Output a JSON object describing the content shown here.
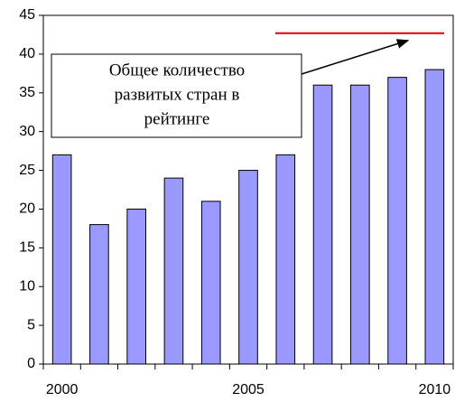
{
  "chart_data": {
    "type": "bar",
    "categories": [
      "2000",
      null,
      null,
      null,
      null,
      "2005",
      null,
      null,
      null,
      null,
      "2010"
    ],
    "values": [
      27,
      18,
      20,
      24,
      21,
      25,
      27,
      36,
      36,
      37,
      38
    ],
    "color": "#9999ff",
    "ylim": [
      0,
      45
    ],
    "yticks": [
      0,
      5,
      10,
      15,
      20,
      25,
      30,
      35,
      40,
      45
    ],
    "reference_line": {
      "value": 42.7,
      "color": "#e00000"
    },
    "annotation": [
      "Общее количество",
      "развитых стран в",
      "рейтинге"
    ]
  }
}
